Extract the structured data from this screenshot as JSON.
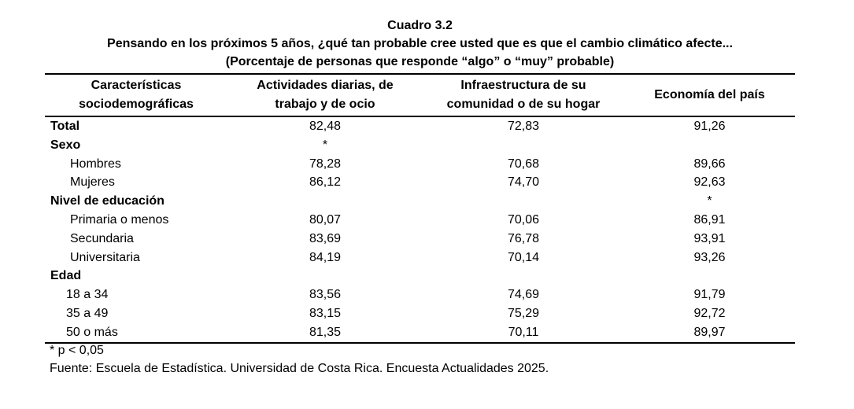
{
  "title": "Cuadro 3.2",
  "subtitle": "Pensando en los próximos 5 años, ¿qué tan probable cree usted que es que el cambio climático afecte...",
  "subtitle2": "(Porcentaje de personas que responde “algo” o “muy” probable)",
  "headers": {
    "col0_line1": "Características",
    "col0_line2": "sociodemográficas",
    "col1_line1": "Actividades diarias, de",
    "col1_line2": "trabajo y de ocio",
    "col2_line1": "Infraestructura de su",
    "col2_line2": "comunidad o de su hogar",
    "col3": "Economía del país"
  },
  "rows": {
    "total": {
      "label": "Total",
      "v1": "82,48",
      "v2": "72,83",
      "v3": "91,26"
    },
    "sexo": {
      "label": "Sexo",
      "v1": "*",
      "v2": "",
      "v3": ""
    },
    "hombres": {
      "label": "Hombres",
      "v1": "78,28",
      "v2": "70,68",
      "v3": "89,66"
    },
    "mujeres": {
      "label": "Mujeres",
      "v1": "86,12",
      "v2": "74,70",
      "v3": "92,63"
    },
    "educacion": {
      "label": "Nivel de educación",
      "v1": "",
      "v2": "",
      "v3": "*"
    },
    "primaria": {
      "label": "Primaria o menos",
      "v1": "80,07",
      "v2": "70,06",
      "v3": "86,91"
    },
    "secundaria": {
      "label": "Secundaria",
      "v1": "83,69",
      "v2": "76,78",
      "v3": "93,91"
    },
    "universitaria": {
      "label": "Universitaria",
      "v1": "84,19",
      "v2": "70,14",
      "v3": "93,26"
    },
    "edad": {
      "label": "Edad",
      "v1": "",
      "v2": "",
      "v3": ""
    },
    "e18": {
      "label": "18 a 34",
      "v1": "83,56",
      "v2": "74,69",
      "v3": "91,79"
    },
    "e35": {
      "label": "35 a 49",
      "v1": "83,15",
      "v2": "75,29",
      "v3": "92,72"
    },
    "e50": {
      "label": "50 o más",
      "v1": "81,35",
      "v2": "70,11",
      "v3": "89,97"
    }
  },
  "notes": {
    "significance": "* p < 0,05",
    "source": "Fuente: Escuela de Estadística. Universidad de Costa Rica. Encuesta Actualidades 2025."
  }
}
